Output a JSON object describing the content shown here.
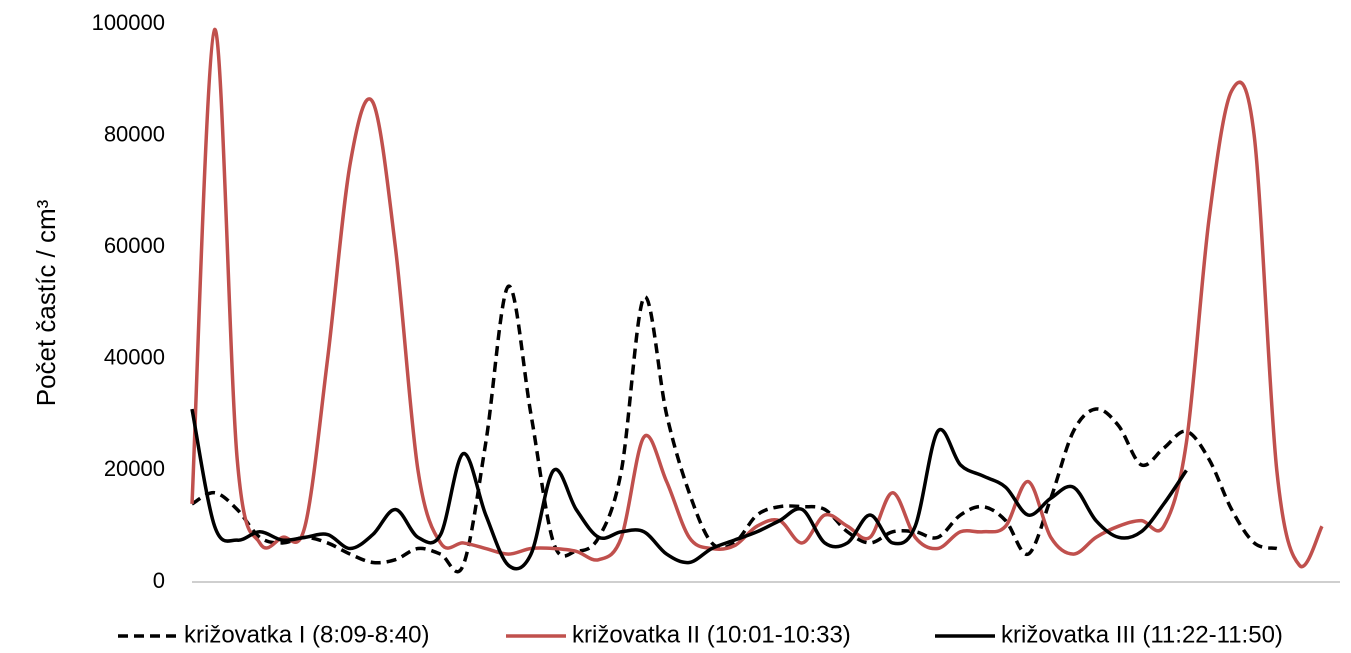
{
  "chart_data": {
    "type": "line",
    "y_label": "Počet častíc / cm³",
    "categories": [
      null,
      null,
      null,
      null,
      null,
      null,
      null,
      null,
      null,
      null,
      null,
      null,
      null,
      null,
      null,
      null,
      null,
      null,
      null,
      null,
      null,
      null,
      null,
      null,
      null,
      null,
      null,
      null,
      null,
      null,
      null,
      null,
      null,
      null,
      null,
      null,
      null,
      null,
      null,
      null,
      null,
      null,
      null,
      null,
      null,
      null,
      null,
      null,
      null,
      null,
      null
    ],
    "ylim": [
      0,
      100000
    ],
    "yticks": [
      0,
      20000,
      40000,
      60000,
      80000,
      100000
    ],
    "grid": false,
    "smooth": true,
    "legend": "bottom",
    "series": [
      {
        "name": "križovatka I (8:09-8:40)",
        "color": "#000000",
        "dash": true,
        "values": [
          14000,
          16000,
          13000,
          8000,
          7000,
          8000,
          7000,
          5000,
          3500,
          4000,
          6000,
          5000,
          3000,
          25000,
          53000,
          30000,
          7000,
          5500,
          8000,
          20000,
          51000,
          30000,
          16000,
          7000,
          7000,
          12000,
          13500,
          13500,
          13000,
          9000,
          7000,
          9000,
          9000,
          8000,
          12000,
          13500,
          11000,
          5000,
          15000,
          27000,
          31000,
          28000,
          21000,
          24000,
          27000,
          22000,
          13000,
          7000,
          6000,
          null,
          null
        ]
      },
      {
        "name": "križovatka II (10:01-10:33)",
        "color": "#c0504d",
        "dash": false,
        "values": [
          14000,
          99000,
          22000,
          7000,
          8000,
          10000,
          40000,
          75000,
          86000,
          60000,
          20000,
          7000,
          7000,
          6000,
          5000,
          6000,
          6000,
          5500,
          4000,
          8000,
          26000,
          18000,
          8000,
          6000,
          6500,
          10000,
          11000,
          7000,
          12000,
          10000,
          8000,
          16000,
          8000,
          6000,
          9000,
          9000,
          10000,
          18000,
          8000,
          5000,
          8000,
          10000,
          11000,
          10000,
          25000,
          65000,
          88000,
          80000,
          20000,
          3000,
          10000
        ]
      },
      {
        "name": "križovatka III (11:22-11:50)",
        "color": "#000000",
        "dash": false,
        "values": [
          31000,
          10000,
          7500,
          9000,
          7500,
          8000,
          8500,
          6000,
          8500,
          13000,
          8000,
          8500,
          23000,
          12000,
          3000,
          5000,
          20000,
          13000,
          8000,
          9000,
          9000,
          5000,
          3500,
          6000,
          7500,
          9000,
          11000,
          13000,
          7000,
          7000,
          12000,
          7000,
          10000,
          27000,
          21000,
          19000,
          17000,
          12000,
          15000,
          17000,
          11000,
          8000,
          9000,
          14000,
          20000,
          null,
          null,
          null,
          null,
          null,
          null
        ]
      }
    ]
  }
}
